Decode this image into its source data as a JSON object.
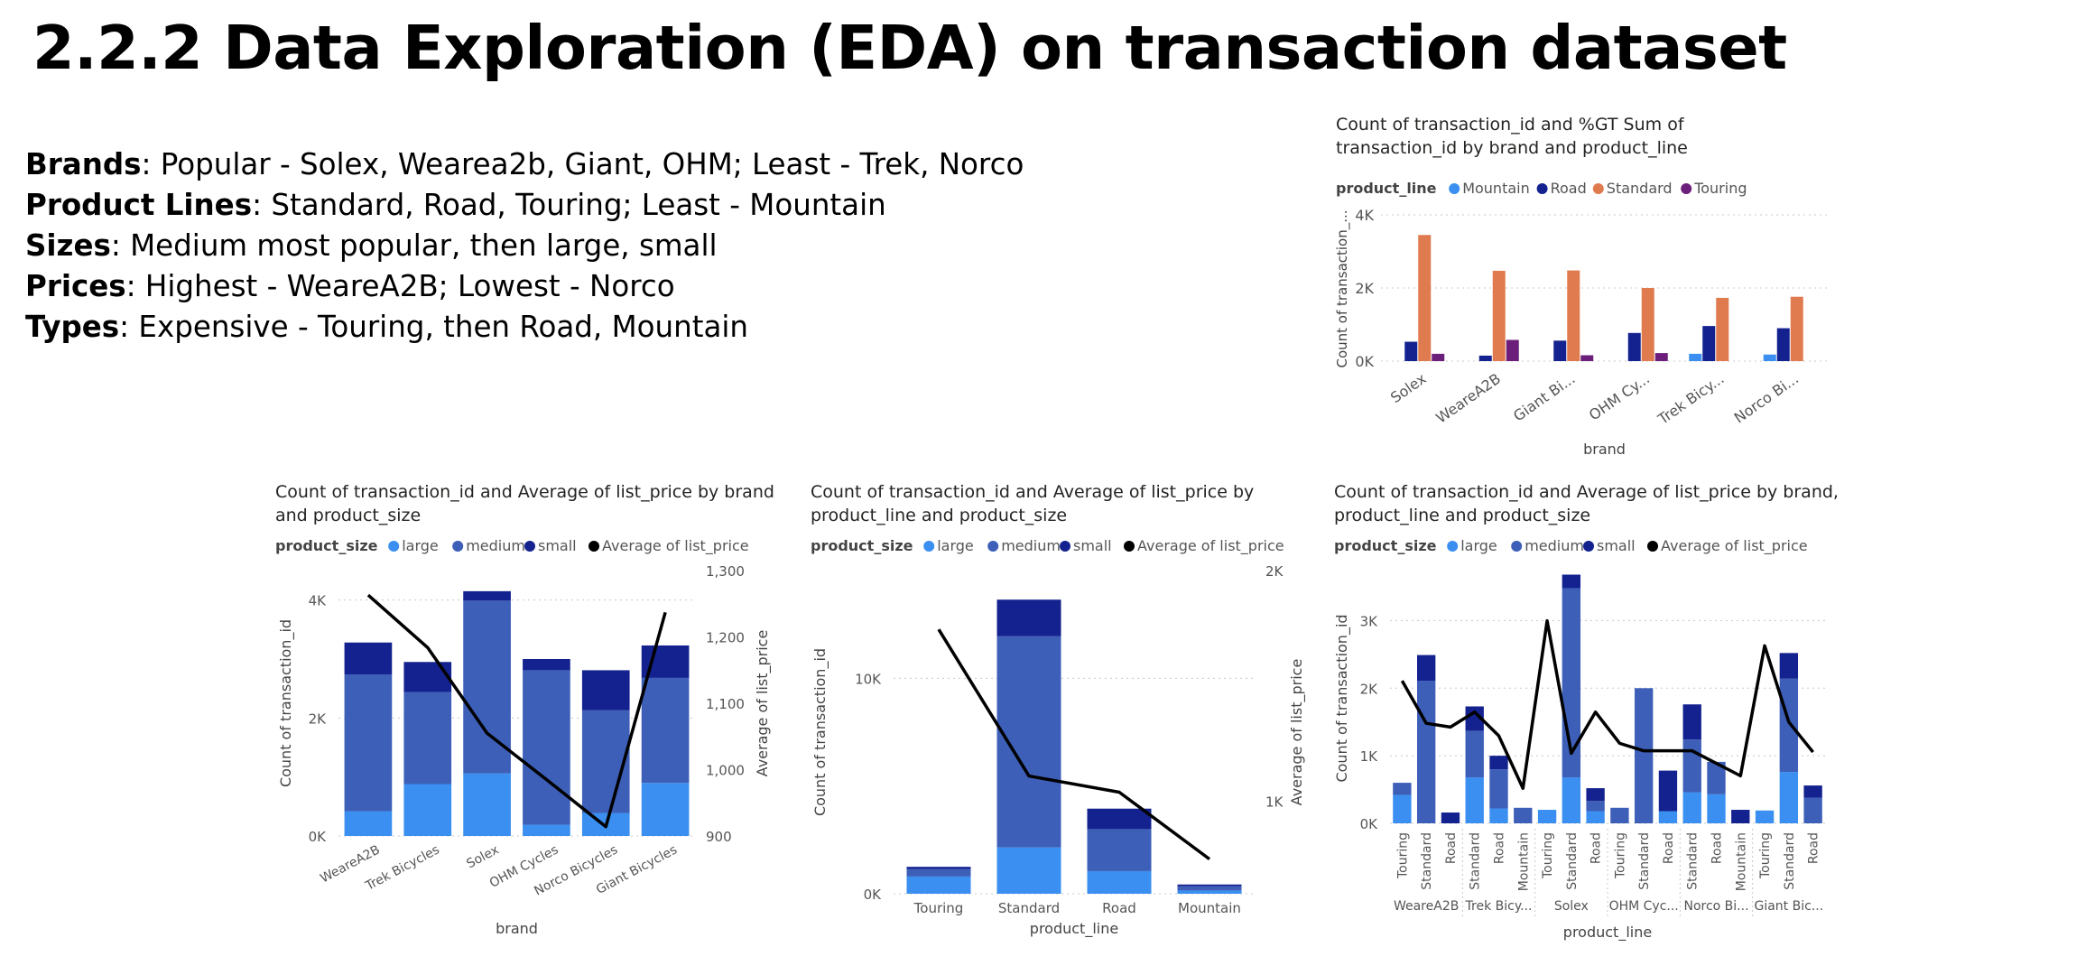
{
  "slide": {
    "title": "2.2.2 Data Exploration (EDA) on transaction dataset",
    "bullets": [
      {
        "label": "Brands",
        "text": ": Popular - Solex, Wearea2b,  Giant, OHM; Least - Trek, Norco"
      },
      {
        "label": "Product Lines",
        "text": ": Standard, Road, Touring;  Least - Mountain"
      },
      {
        "label": "Sizes",
        "text": ": Medium most popular, then large, small"
      },
      {
        "label": "Prices",
        "text": ": Highest - WeareA2B;  Lowest - Norco"
      },
      {
        "label": "Types",
        "text": ": Expensive  - Touring, then Road, Mountain"
      }
    ]
  },
  "colors": {
    "large": "#3a8ff0",
    "medium": "#3d5fb8",
    "small": "#14228f",
    "mountain": "#3a8ff0",
    "road": "#14228f",
    "standard": "#e07a4f",
    "touring": "#6b1f7a",
    "line": "#000000",
    "grid": "#c8c8c8",
    "axis_text": "#555555"
  },
  "chart_data": [
    {
      "type": "bar",
      "title": "Count of transaction_id and %GT Sum of transaction_id by brand and product_line",
      "title_lines": [
        "Count of transaction_id and %GT Sum of",
        "transaction_id by brand and product_line"
      ],
      "legend_title": "product_line",
      "xlabel": "brand",
      "ylabel": "Count of transaction_...",
      "ylim": [
        0,
        4000
      ],
      "yticks": [
        0,
        2000,
        4000
      ],
      "ytick_labels": [
        "0K",
        "2K",
        "4K"
      ],
      "categories": [
        "Solex",
        "WeareA2B",
        "Giant Bi...",
        "OHM Cy...",
        "Trek Bicy...",
        "Norco Bi..."
      ],
      "series": [
        {
          "name": "Mountain",
          "values": [
            0,
            0,
            0,
            0,
            200,
            180
          ]
        },
        {
          "name": "Road",
          "values": [
            530,
            150,
            560,
            770,
            960,
            900
          ]
        },
        {
          "name": "Standard",
          "values": [
            3450,
            2470,
            2480,
            2000,
            1730,
            1760
          ]
        },
        {
          "name": "Touring",
          "values": [
            200,
            580,
            160,
            220,
            0,
            0
          ]
        }
      ]
    },
    {
      "type": "bar",
      "stacked": true,
      "title": "Count of transaction_id and Average of list_price by brand and product_size",
      "title_lines": [
        "Count of transaction_id and Average of list_price by brand",
        "and product_size"
      ],
      "legend_title": "product_size",
      "legend_line": "Average of list_price",
      "xlabel": "brand",
      "ylabel": "Count of transaction_id",
      "ylabel_right": "Average of list_price",
      "ylim": [
        0,
        4500
      ],
      "yticks": [
        0,
        2000,
        4000
      ],
      "ytick_labels": [
        "0K",
        "2K",
        "4K"
      ],
      "ylim_right": [
        900,
        1300
      ],
      "yticks_right": [
        900,
        1000,
        1100,
        1200,
        1300
      ],
      "ytick_labels_right": [
        "900",
        "1,000",
        "1,100",
        "1,200",
        "1,300"
      ],
      "categories": [
        "WeareA2B",
        "Trek Bicycles",
        "Solex",
        "OHM Cycles",
        "Norco Bicycles",
        "Giant Bicycles"
      ],
      "series": [
        {
          "name": "large",
          "values": [
            420,
            880,
            1060,
            190,
            390,
            900
          ]
        },
        {
          "name": "medium",
          "values": [
            2320,
            1560,
            2930,
            2620,
            1740,
            1780
          ]
        },
        {
          "name": "small",
          "values": [
            540,
            510,
            160,
            190,
            680,
            550
          ]
        }
      ],
      "line": {
        "name": "Average of list_price",
        "values": [
          1263,
          1184,
          1055,
          985,
          914,
          1237
        ]
      }
    },
    {
      "type": "bar",
      "stacked": true,
      "title": "Count of transaction_id and Average of list_price by product_line and product_size",
      "title_lines": [
        "Count of transaction_id and Average of list_price by",
        "product_line and product_size"
      ],
      "legend_title": "product_size",
      "legend_line": "Average of list_price",
      "xlabel": "product_line",
      "ylabel": "Count of transaction_id",
      "ylabel_right": "Average of list_price",
      "ylim": [
        0,
        15000
      ],
      "yticks": [
        0,
        10000
      ],
      "ytick_labels": [
        "0K",
        "10K"
      ],
      "ylim_right": [
        600,
        2000
      ],
      "yticks_right": [
        1000,
        2000
      ],
      "ytick_labels_right": [
        "1K",
        "2K"
      ],
      "categories": [
        "Touring",
        "Standard",
        "Road",
        "Mountain"
      ],
      "series": [
        {
          "name": "large",
          "values": [
            800,
            2150,
            1050,
            150
          ]
        },
        {
          "name": "medium",
          "values": [
            350,
            9800,
            1950,
            200
          ]
        },
        {
          "name": "small",
          "values": [
            100,
            1700,
            950,
            80
          ]
        }
      ],
      "line": {
        "name": "Average of list_price",
        "values": [
          1745,
          1110,
          1040,
          750
        ]
      }
    },
    {
      "type": "bar",
      "stacked": true,
      "title": "Count of transaction_id and Average of list_price by brand, product_line and product_size",
      "title_lines": [
        "Count of transaction_id and Average of list_price by brand,",
        "product_line and product_size"
      ],
      "legend_title": "product_size",
      "legend_line": "Average of list_price",
      "xlabel": "product_line",
      "ylabel": "Count of transaction_id",
      "ylim": [
        0,
        3700
      ],
      "yticks": [
        0,
        1000,
        2000,
        3000
      ],
      "ytick_labels": [
        "0K",
        "1K",
        "2K",
        "3K"
      ],
      "line_ylim": [
        400,
        2400
      ],
      "categories": [
        "Touring",
        "Standard",
        "Road",
        "Standard",
        "Road",
        "Mountain",
        "Touring",
        "Standard",
        "Road",
        "Touring",
        "Standard",
        "Road",
        "Standard",
        "Road",
        "Mountain",
        "Touring",
        "Standard",
        "Road"
      ],
      "groups": [
        {
          "label": "WeareA2B",
          "count": 3
        },
        {
          "label": "Trek Bicy...",
          "count": 3
        },
        {
          "label": "Solex",
          "count": 3
        },
        {
          "label": "OHM Cyc...",
          "count": 3
        },
        {
          "label": "Norco Bi...",
          "count": 3
        },
        {
          "label": "Giant Bic...",
          "count": 3
        }
      ],
      "series": [
        {
          "name": "large",
          "values": [
            420,
            0,
            0,
            680,
            220,
            0,
            200,
            680,
            180,
            0,
            0,
            180,
            460,
            430,
            0,
            190,
            760,
            0
          ]
        },
        {
          "name": "medium",
          "values": [
            180,
            2110,
            0,
            690,
            580,
            230,
            0,
            2800,
            150,
            230,
            2000,
            0,
            780,
            480,
            0,
            0,
            1380,
            380
          ]
        },
        {
          "name": "small",
          "values": [
            0,
            380,
            160,
            360,
            200,
            0,
            0,
            200,
            190,
            0,
            0,
            600,
            520,
            0,
            200,
            0,
            380,
            180
          ]
        }
      ],
      "line": {
        "name": "Average of list_price",
        "values": [
          1540,
          1200,
          1170,
          1290,
          1100,
          680,
          2020,
          960,
          1290,
          1040,
          980,
          980,
          980,
          880,
          780,
          1820,
          1210,
          970
        ]
      }
    }
  ]
}
